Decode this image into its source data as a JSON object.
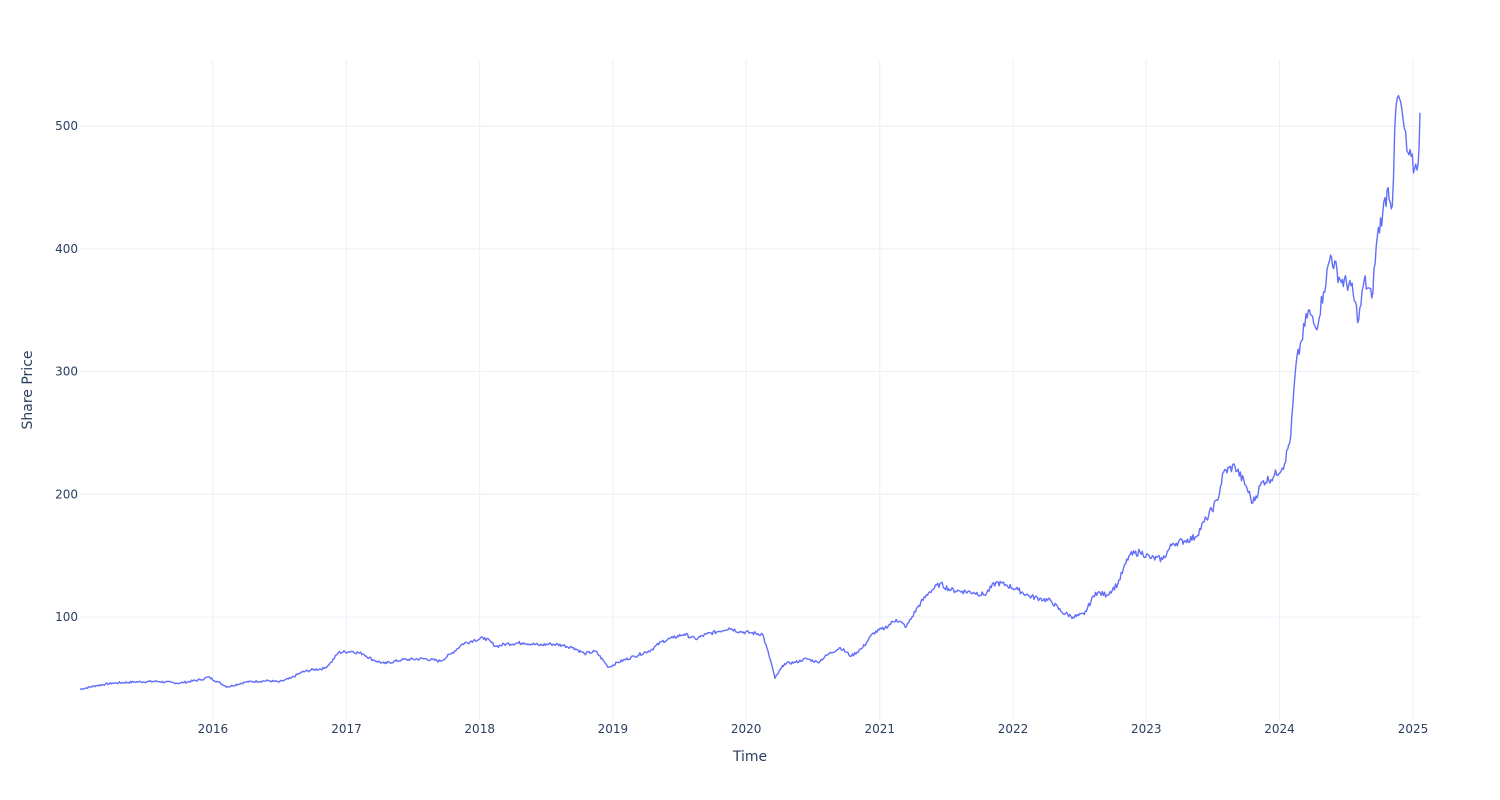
{
  "chart_data": {
    "type": "line",
    "xlabel": "Time",
    "ylabel": "Share Price",
    "x_ticks": [
      "2016",
      "2017",
      "2018",
      "2019",
      "2020",
      "2021",
      "2022",
      "2023",
      "2024",
      "2025"
    ],
    "y_ticks": [
      100,
      200,
      300,
      400,
      500
    ],
    "xlim": [
      "2015-01-02",
      "2025-01-20"
    ],
    "ylim": [
      16,
      554
    ],
    "grid": true,
    "line_color": "#636efa",
    "series": [
      {
        "points": [
          [
            "2015-01-02",
            41
          ],
          [
            "2015-02-15",
            44
          ],
          [
            "2015-04-01",
            46
          ],
          [
            "2015-06-01",
            47
          ],
          [
            "2015-08-01",
            47.5
          ],
          [
            "2015-10-01",
            46
          ],
          [
            "2015-12-01",
            49
          ],
          [
            "2015-12-20",
            51
          ],
          [
            "2016-01-15",
            47
          ],
          [
            "2016-02-10",
            43
          ],
          [
            "2016-04-01",
            47
          ],
          [
            "2016-06-01",
            48
          ],
          [
            "2016-07-01",
            47
          ],
          [
            "2016-08-01",
            50
          ],
          [
            "2016-09-01",
            55
          ],
          [
            "2016-10-01",
            57
          ],
          [
            "2016-11-01",
            58
          ],
          [
            "2016-11-20",
            63
          ],
          [
            "2016-12-10",
            71
          ],
          [
            "2017-01-15",
            72
          ],
          [
            "2017-02-15",
            70
          ],
          [
            "2017-03-15",
            65
          ],
          [
            "2017-04-15",
            62
          ],
          [
            "2017-06-01",
            65
          ],
          [
            "2017-08-01",
            66
          ],
          [
            "2017-09-15",
            64
          ],
          [
            "2017-10-15",
            70
          ],
          [
            "2017-11-15",
            78
          ],
          [
            "2017-12-15",
            81
          ],
          [
            "2018-01-15",
            83
          ],
          [
            "2018-02-15",
            76
          ],
          [
            "2018-03-15",
            78
          ],
          [
            "2018-05-01",
            79
          ],
          [
            "2018-06-15",
            77
          ],
          [
            "2018-07-15",
            78
          ],
          [
            "2018-08-15",
            77
          ],
          [
            "2018-09-15",
            75
          ],
          [
            "2018-10-15",
            70
          ],
          [
            "2018-11-15",
            72
          ],
          [
            "2018-12-20",
            59
          ],
          [
            "2019-01-15",
            63
          ],
          [
            "2019-03-01",
            68
          ],
          [
            "2019-04-15",
            73
          ],
          [
            "2019-05-15",
            80
          ],
          [
            "2019-06-15",
            83
          ],
          [
            "2019-07-15",
            86
          ],
          [
            "2019-08-15",
            82
          ],
          [
            "2019-09-15",
            86
          ],
          [
            "2019-10-15",
            88
          ],
          [
            "2019-11-15",
            91
          ],
          [
            "2019-12-15",
            88
          ],
          [
            "2020-01-15",
            87
          ],
          [
            "2020-02-15",
            86
          ],
          [
            "2020-03-10",
            62
          ],
          [
            "2020-03-20",
            50
          ],
          [
            "2020-04-15",
            62
          ],
          [
            "2020-05-15",
            63
          ],
          [
            "2020-06-15",
            66
          ],
          [
            "2020-07-15",
            63
          ],
          [
            "2020-08-15",
            70
          ],
          [
            "2020-09-15",
            75
          ],
          [
            "2020-10-15",
            68
          ],
          [
            "2020-11-15",
            75
          ],
          [
            "2020-12-15",
            87
          ],
          [
            "2021-01-15",
            91
          ],
          [
            "2021-02-15",
            98
          ],
          [
            "2021-03-15",
            92
          ],
          [
            "2021-04-15",
            108
          ],
          [
            "2021-05-15",
            120
          ],
          [
            "2021-06-15",
            127
          ],
          [
            "2021-07-15",
            122
          ],
          [
            "2021-08-15",
            121
          ],
          [
            "2021-09-15",
            120
          ],
          [
            "2021-10-15",
            118
          ],
          [
            "2021-11-15",
            128
          ],
          [
            "2021-12-15",
            126
          ],
          [
            "2022-01-15",
            122
          ],
          [
            "2022-02-15",
            117
          ],
          [
            "2022-03-15",
            115
          ],
          [
            "2022-04-15",
            113
          ],
          [
            "2022-05-15",
            104
          ],
          [
            "2022-06-15",
            100
          ],
          [
            "2022-07-15",
            102
          ],
          [
            "2022-08-15",
            120
          ],
          [
            "2022-09-15",
            118
          ],
          [
            "2022-10-15",
            127
          ],
          [
            "2022-11-15",
            150
          ],
          [
            "2022-12-15",
            153
          ],
          [
            "2023-01-15",
            148
          ],
          [
            "2023-02-15",
            147
          ],
          [
            "2023-03-15",
            160
          ],
          [
            "2023-04-15",
            162
          ],
          [
            "2023-05-15",
            165
          ],
          [
            "2023-06-15",
            180
          ],
          [
            "2023-07-15",
            195
          ],
          [
            "2023-08-01",
            218
          ],
          [
            "2023-09-01",
            223
          ],
          [
            "2023-10-01",
            207
          ],
          [
            "2023-10-20",
            193
          ],
          [
            "2023-11-15",
            210
          ],
          [
            "2023-12-15",
            214
          ],
          [
            "2024-01-15",
            225
          ],
          [
            "2024-02-01",
            248
          ],
          [
            "2024-02-15",
            305
          ],
          [
            "2024-03-01",
            325
          ],
          [
            "2024-03-20",
            350
          ],
          [
            "2024-04-10",
            335
          ],
          [
            "2024-05-01",
            365
          ],
          [
            "2024-05-20",
            395
          ],
          [
            "2024-06-15",
            375
          ],
          [
            "2024-07-15",
            370
          ],
          [
            "2024-08-05",
            342
          ],
          [
            "2024-08-20",
            375
          ],
          [
            "2024-09-10",
            360
          ],
          [
            "2024-09-25",
            410
          ],
          [
            "2024-10-10",
            430
          ],
          [
            "2024-10-25",
            450
          ],
          [
            "2024-11-05",
            435
          ],
          [
            "2024-11-15",
            515
          ],
          [
            "2024-11-22",
            525
          ],
          [
            "2024-12-05",
            505
          ],
          [
            "2024-12-15",
            480
          ],
          [
            "2025-01-05",
            465
          ],
          [
            "2025-01-15",
            470
          ],
          [
            "2025-01-20",
            511
          ]
        ]
      }
    ]
  }
}
